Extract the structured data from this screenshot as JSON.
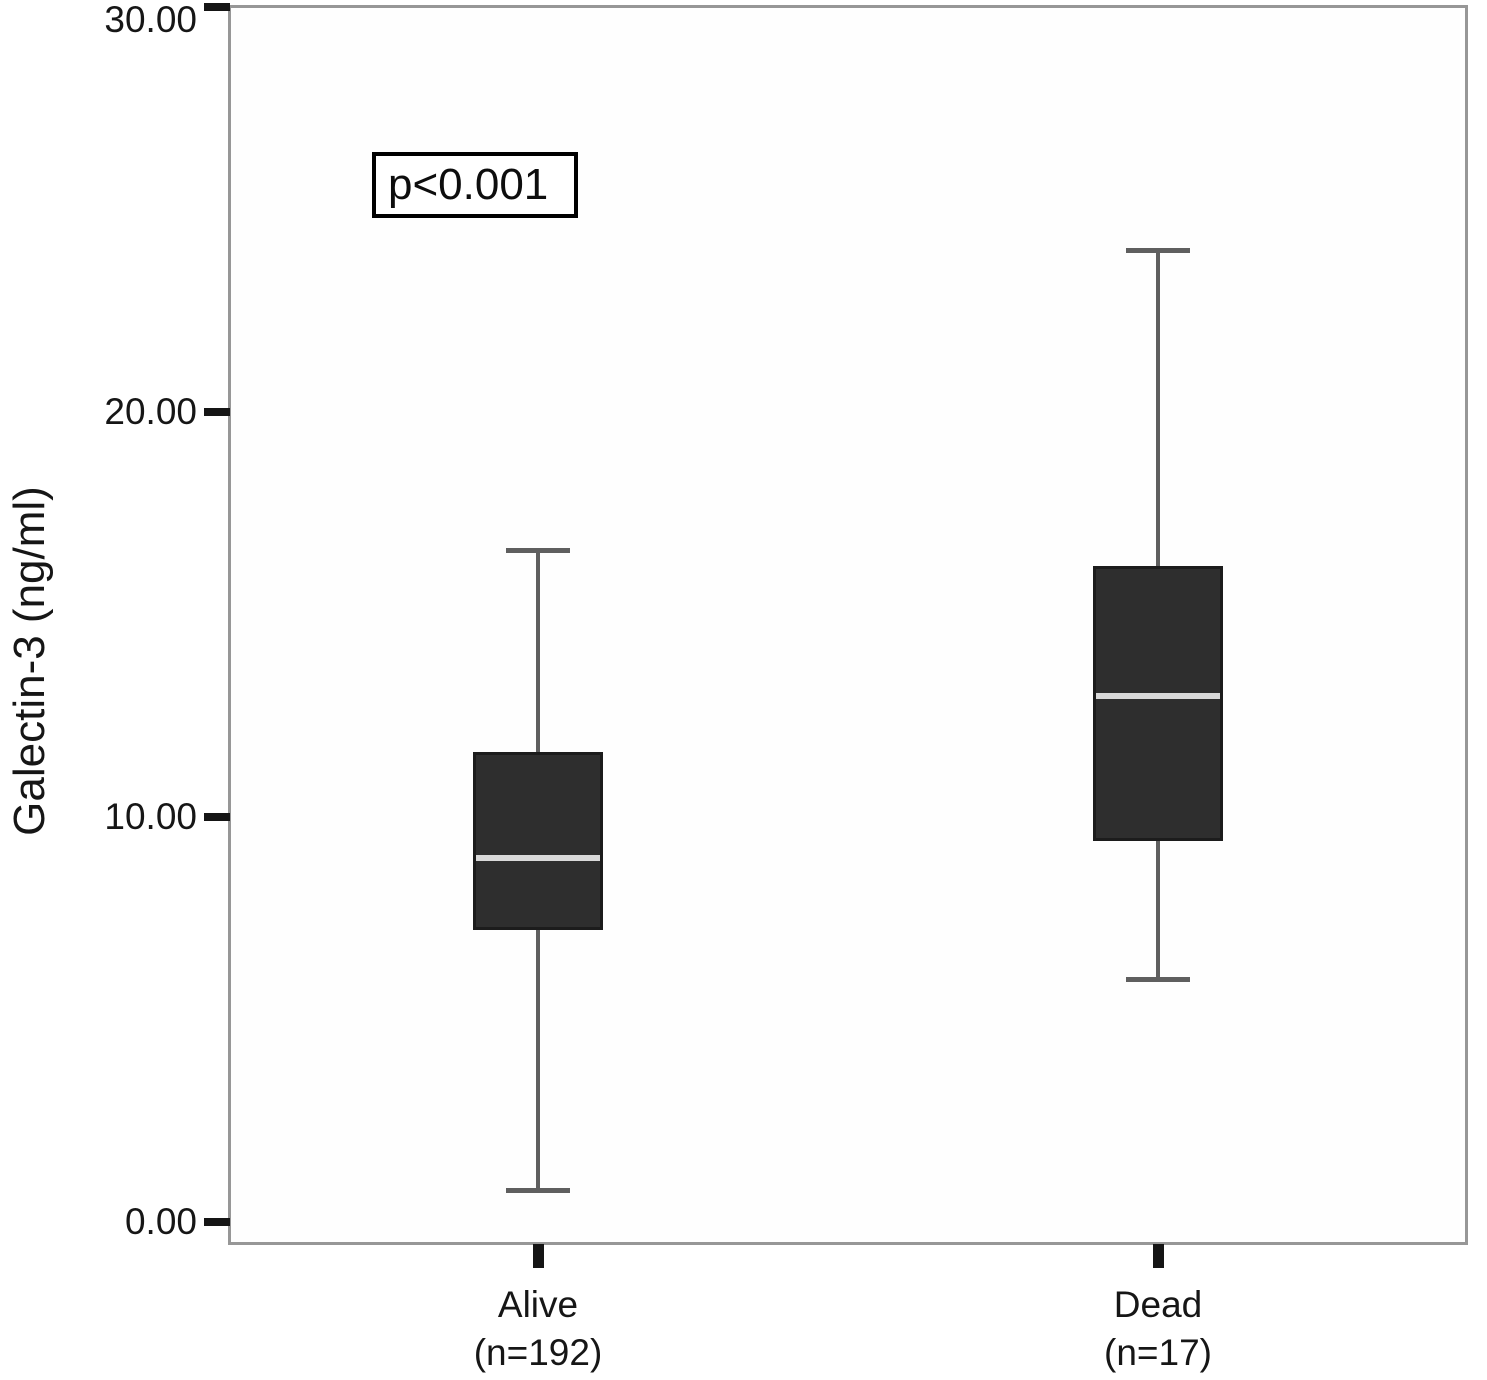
{
  "chart_data": {
    "type": "boxplot",
    "ylabel": "Galectin-3 (ng/ml)",
    "xlabel": "",
    "title": "",
    "ylim": [
      0,
      30
    ],
    "yticks": [
      {
        "value": 30,
        "label": "30.00"
      },
      {
        "value": 20,
        "label": "20.00"
      },
      {
        "value": 10,
        "label": "10.00"
      },
      {
        "value": 0,
        "label": "0.00"
      }
    ],
    "annotation": "p<0.001",
    "grid": false,
    "legend": "none",
    "groups": [
      {
        "label": "Alive",
        "sublabel": "(n=192)",
        "n": 192,
        "whisker_min": 0.8,
        "q1": 7.2,
        "median": 9.0,
        "q3": 11.6,
        "whisker_max": 16.6
      },
      {
        "label": "Dead",
        "sublabel": "(n=17)",
        "n": 17,
        "whisker_min": 6.0,
        "q1": 9.4,
        "median": 13.0,
        "q3": 16.2,
        "whisker_max": 24.0
      }
    ],
    "colors": {
      "box_fill": "#2e2e2e",
      "box_border": "#1c1c1c",
      "median": "#d9d9d9",
      "whisker": "#5f5f5f",
      "frame": "#979797",
      "tick": "#151515",
      "text": "#161616"
    }
  }
}
